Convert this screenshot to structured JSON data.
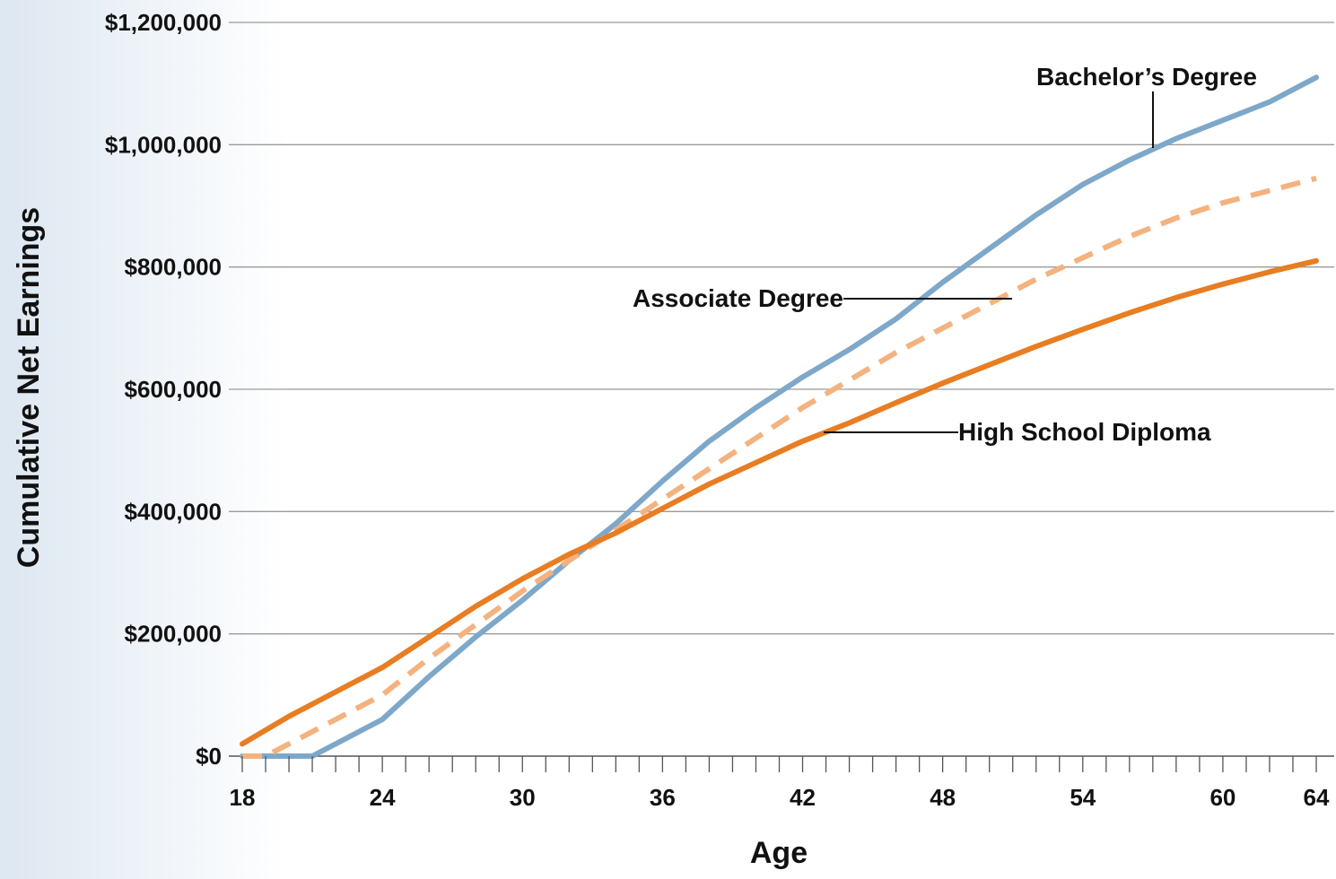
{
  "chart_data": {
    "type": "line",
    "title": "",
    "xlabel": "Age",
    "ylabel": "Cumulative Net Earnings",
    "xlim": [
      18,
      64
    ],
    "ylim": [
      0,
      1200000
    ],
    "x_ticks": [
      18,
      24,
      30,
      36,
      42,
      48,
      54,
      60,
      64
    ],
    "x_tick_labels": [
      "18",
      "24",
      "30",
      "36",
      "42",
      "48",
      "54",
      "60",
      "64"
    ],
    "y_ticks": [
      0,
      200000,
      400000,
      600000,
      800000,
      1000000,
      1200000
    ],
    "y_tick_labels": [
      "$0",
      "$200,000",
      "$400,000",
      "$600,000",
      "$800,000",
      "$1,000,000",
      "$1,200,000"
    ],
    "grid": "horizontal",
    "legend": "none (labels annotated on lines)",
    "series": [
      {
        "name": "Bachelor’s Degree",
        "color": "#7ea8c9",
        "dash": "solid",
        "x": [
          18,
          21,
          22,
          24,
          26,
          28,
          30,
          32,
          34,
          36,
          38,
          40,
          42,
          44,
          46,
          48,
          50,
          52,
          54,
          56,
          58,
          60,
          62,
          64
        ],
        "y": [
          0,
          0,
          20000,
          60000,
          130000,
          195000,
          255000,
          320000,
          380000,
          450000,
          515000,
          570000,
          620000,
          665000,
          715000,
          775000,
          830000,
          885000,
          935000,
          975000,
          1010000,
          1040000,
          1070000,
          1110000
        ]
      },
      {
        "name": "Associate Degree",
        "color": "#f4b27f",
        "dash": "dashed",
        "x": [
          18,
          19,
          20,
          22,
          24,
          26,
          28,
          30,
          32,
          34,
          36,
          38,
          40,
          42,
          44,
          46,
          48,
          50,
          52,
          54,
          56,
          58,
          60,
          62,
          64
        ],
        "y": [
          0,
          0,
          20000,
          60000,
          100000,
          160000,
          215000,
          270000,
          320000,
          370000,
          420000,
          470000,
          520000,
          570000,
          615000,
          660000,
          700000,
          740000,
          780000,
          815000,
          850000,
          880000,
          905000,
          925000,
          945000
        ]
      },
      {
        "name": "High School Diploma",
        "color": "#e87d22",
        "dash": "solid",
        "x": [
          18,
          20,
          22,
          24,
          26,
          28,
          30,
          32,
          34,
          36,
          38,
          40,
          42,
          44,
          46,
          48,
          50,
          52,
          54,
          56,
          58,
          60,
          62,
          64
        ],
        "y": [
          20000,
          65000,
          105000,
          145000,
          195000,
          245000,
          290000,
          330000,
          365000,
          405000,
          445000,
          480000,
          515000,
          545000,
          578000,
          610000,
          640000,
          670000,
          698000,
          725000,
          750000,
          772000,
          792000,
          810000
        ]
      }
    ],
    "annotations": [
      {
        "text": "Bachelor’s Degree",
        "series": "Bachelor’s Degree"
      },
      {
        "text": "Associate Degree",
        "series": "Associate Degree"
      },
      {
        "text": "High School Diploma",
        "series": "High School Diploma"
      }
    ]
  }
}
